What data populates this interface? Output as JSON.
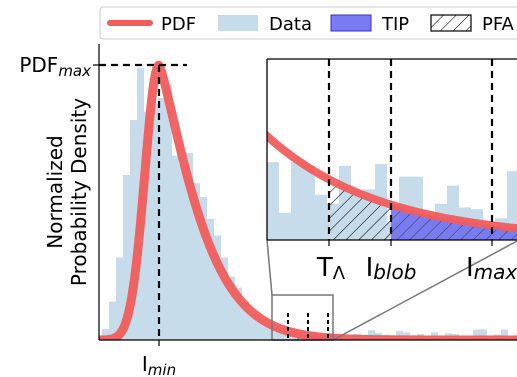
{
  "chart_data": {
    "type": "area",
    "legend": {
      "placement": "top",
      "entries": [
        {
          "label": "PDF",
          "kind": "line",
          "color": "#f25c5c"
        },
        {
          "label": "Data",
          "kind": "patch",
          "color": "#c6dceb"
        },
        {
          "label": "TIP",
          "kind": "patch",
          "color": "#7a7af2"
        },
        {
          "label": "PFA",
          "kind": "hatch",
          "color": "#000000"
        }
      ]
    },
    "ylabel": "Normalized\nProbability Density",
    "y_marker": {
      "text": "PDF",
      "sub": "max"
    },
    "x_marker": {
      "text": "I",
      "sub": "min"
    },
    "inset_labels": [
      {
        "text": "T",
        "sub": "Λ",
        "sub_italic": false
      },
      {
        "text": "I",
        "sub": "blob",
        "sub_italic": true
      },
      {
        "text": "I",
        "sub": "max",
        "sub_italic": true
      }
    ],
    "grid": false,
    "hist_heights": [
      0.04,
      0.14,
      0.3,
      0.6,
      0.8,
      0.99,
      0.83,
      0.86,
      0.88,
      0.93,
      0.67,
      0.64,
      0.68,
      0.57,
      0.52,
      0.44,
      0.38,
      0.3,
      0.23,
      0.19,
      0.14,
      0.1,
      0.08,
      0.05,
      0.05,
      0.04,
      0.03,
      0.04,
      0.03,
      0.03,
      0.02
    ],
    "hist_tail": {
      "count": 38,
      "min": 0.004,
      "max": 0.04
    },
    "inset_hist": [
      0.43,
      0.15,
      0.43,
      0.41,
      0.25,
      0.2,
      0.41,
      0.27,
      0.28,
      0.42,
      0.1,
      0.35,
      0.35,
      0.12,
      0.2,
      0.3,
      0.18,
      0.17,
      0.08,
      0.12,
      0.38,
      0.22
    ]
  },
  "colors": {
    "pdf": "#f25c5c",
    "hist": "#c6dceb",
    "tip": "#6b6bf0",
    "axis": "#000000",
    "inset_box": "#777777"
  }
}
